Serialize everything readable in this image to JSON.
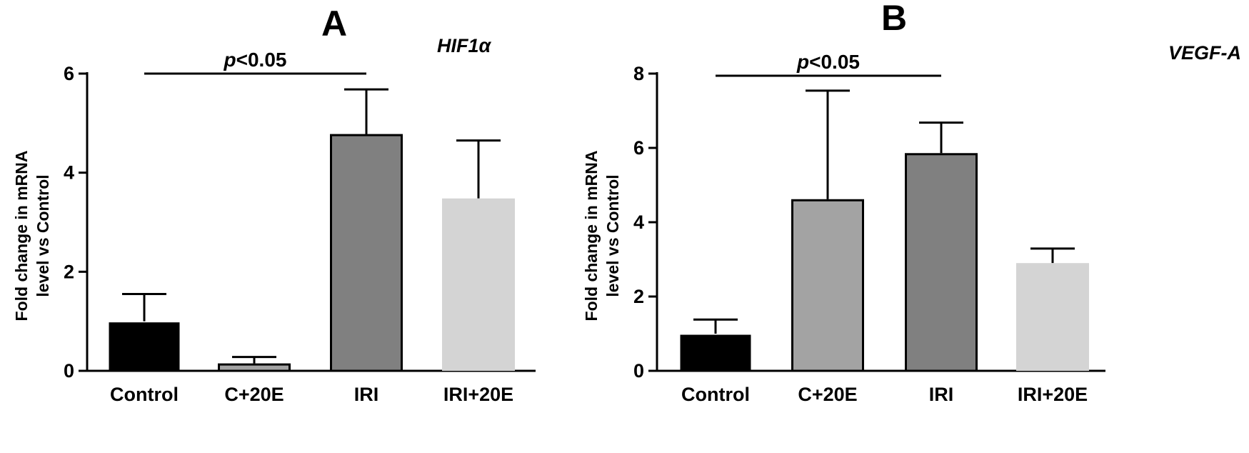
{
  "chart_data": [
    {
      "type": "bar",
      "panel": "A",
      "title": "HIF1α",
      "ylabel_lines": [
        "Fold change in mRNA",
        "level vs Control"
      ],
      "categories": [
        "Control",
        "C+20E",
        "IRI",
        "IRI+20E"
      ],
      "values": [
        1.0,
        0.15,
        4.78,
        3.48
      ],
      "errors": [
        0.55,
        0.13,
        0.9,
        1.17
      ],
      "colors": [
        "#000000",
        "#a3a3a3",
        "#808080",
        "#d4d4d4"
      ],
      "ylim": [
        0,
        6
      ],
      "yticks": [
        0,
        2,
        4,
        6
      ],
      "significance": {
        "label_prefix": "p",
        "label_suffix": "<0.05",
        "from": 0,
        "to": 2
      }
    },
    {
      "type": "bar",
      "panel": "B",
      "title": "VEGF-A",
      "ylabel_lines": [
        "Fold change in mRNA",
        "level vs Control"
      ],
      "categories": [
        "Control",
        "C+20E",
        "IRI",
        "IRI+20E"
      ],
      "values": [
        1.0,
        4.62,
        5.86,
        2.9
      ],
      "errors": [
        0.38,
        2.92,
        0.82,
        0.39
      ],
      "colors": [
        "#000000",
        "#a3a3a3",
        "#808080",
        "#d4d4d4"
      ],
      "ylim": [
        0,
        8
      ],
      "yticks": [
        0,
        2,
        4,
        6,
        8
      ],
      "significance": {
        "label_prefix": "p",
        "label_suffix": "<0.05",
        "from": 0,
        "to": 2
      }
    }
  ]
}
